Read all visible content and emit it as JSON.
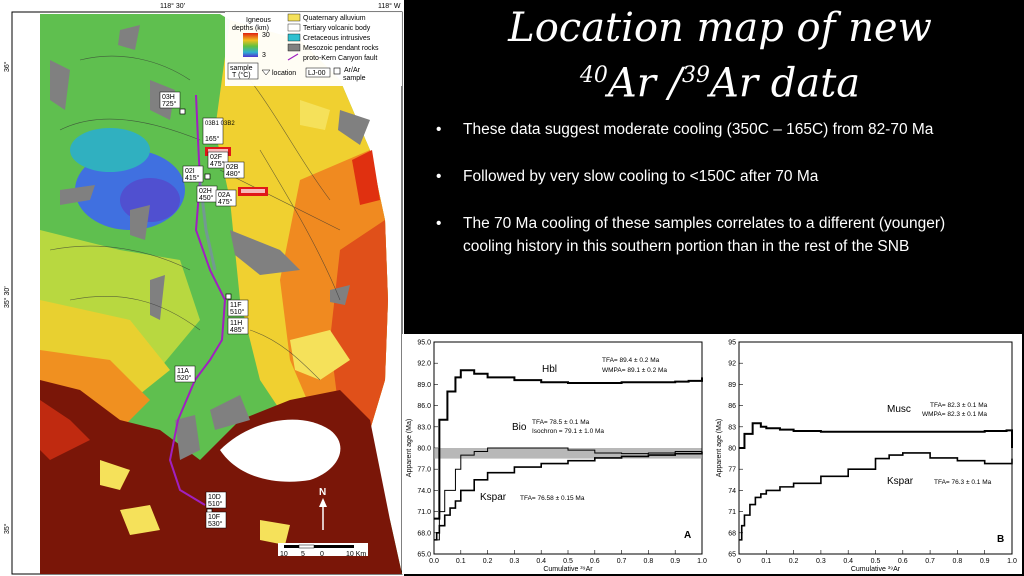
{
  "slide": {
    "title_line1": "Location map of new",
    "title_sup1": "40",
    "title_ar1": "Ar /",
    "title_sup2": "39",
    "title_ar2": "Ar data",
    "bullets": [
      "These data suggest moderate cooling (350C – 165C) from 82-70 Ma",
      "Followed by very slow cooling  to <150C after 70 Ma",
      "The 70 Ma cooling of these samples correlates to a different (younger) cooling history in this southern portion than in the rest of the SNB"
    ]
  },
  "map": {
    "lon_labels": [
      "118° 30'",
      "118° W"
    ],
    "lat_labels": [
      "36°",
      "35° 30'",
      "35°"
    ],
    "legend": {
      "depth_title_1": "Igneous",
      "depth_title_2": "depths (km)",
      "depth_max": "30",
      "depth_min": "3",
      "items": [
        "Quaternary alluvium",
        "Tertiary volcanic body",
        "Cretaceous intrusives",
        "Mesozoic pendant rocks",
        "proto-Kern Canyon fault"
      ],
      "sample_label_1": "sample",
      "sample_label_2": "T (°C)",
      "location_label": "location",
      "sample_id_example": "LJ-00",
      "arar_label_1": "Ar/Ar",
      "arar_label_2": "sample"
    },
    "samples": [
      {
        "id": "03H",
        "temp": "725°"
      },
      {
        "id": "03B1 03B2",
        "temp": "165°"
      },
      {
        "id": "02F",
        "temp": "475°"
      },
      {
        "id": "02B",
        "temp": "480°"
      },
      {
        "id": "02I",
        "temp": "415°"
      },
      {
        "id": "02H",
        "temp": "450°"
      },
      {
        "id": "02A",
        "temp": "475°"
      },
      {
        "id": "11F",
        "temp": "510°"
      },
      {
        "id": "11H",
        "temp": "485°"
      },
      {
        "id": "11A",
        "temp": "520°"
      },
      {
        "id": "10D",
        "temp": "510°"
      },
      {
        "id": "10F",
        "temp": "530°"
      }
    ],
    "north": "N",
    "scale_labels": [
      "10",
      "5",
      "0",
      "10 Km"
    ]
  },
  "colors": {
    "alluvium": "#f5e15a",
    "maroon": "#7a1608",
    "pendant": "#808080",
    "fault": "#a020c0",
    "highlight": "#e01818"
  },
  "chart_data": [
    {
      "type": "line",
      "panel": "A",
      "ylabel": "Apparent age (Ma)",
      "xlabel": "Cumulative ³⁹Ar",
      "ylim": [
        65,
        95
      ],
      "xlim": [
        0,
        1
      ],
      "yticks": [
        "65.0",
        "68.0",
        "71.0",
        "74.0",
        "77.0",
        "80.0",
        "83.0",
        "86.0",
        "89.0",
        "92.0",
        "95.0"
      ],
      "xticks": [
        "0.0",
        "0.1",
        "0.2",
        "0.3",
        "0.4",
        "0.5",
        "0.6",
        "0.7",
        "0.8",
        "0.9",
        "1.0"
      ],
      "annotations": [
        "Hbl",
        "TFA= 89.4 ± 0.2 Ma",
        "WMPA= 89.1 ± 0.2 Ma",
        "Bio",
        "TFA= 78.5 ± 0.1 Ma",
        "Isochron = 79.1 ± 1.0 Ma",
        "Kspar",
        "TFA= 76.58 ± 0.15 Ma",
        "A"
      ],
      "series": [
        {
          "x": [
            0,
            0.02,
            0.05,
            0.08,
            0.1,
            0.15,
            0.2,
            0.3,
            0.4,
            0.5,
            0.6,
            0.7,
            0.8,
            0.9,
            0.95,
            1.0
          ],
          "values": [
            70,
            84,
            88,
            90,
            91,
            90.5,
            90,
            89.6,
            89.3,
            89.2,
            89.2,
            89.3,
            89.3,
            89.4,
            89.5,
            90
          ]
        },
        {
          "x": [
            0,
            0.02,
            0.04,
            0.08,
            0.1,
            0.15,
            0.2,
            0.3,
            0.4,
            0.5,
            0.6,
            0.7,
            0.8,
            0.9,
            1.0
          ],
          "values": [
            67,
            71,
            74,
            77,
            79,
            79.5,
            80,
            80,
            80,
            79.7,
            79.3,
            79.2,
            79.3,
            79.5,
            80
          ]
        },
        {
          "x": [
            0,
            0.01,
            0.02,
            0.04,
            0.06,
            0.08,
            0.1,
            0.15,
            0.2,
            0.3,
            0.4,
            0.5,
            0.6,
            0.7,
            0.8,
            0.9,
            1.0
          ],
          "values": [
            67,
            68,
            69,
            70.5,
            71.5,
            72.5,
            74,
            75.5,
            76.5,
            77.3,
            77.8,
            78.2,
            78.6,
            78.8,
            79,
            79.2,
            79.5
          ]
        }
      ]
    },
    {
      "type": "line",
      "panel": "B",
      "ylabel": "Apparent age (Ma)",
      "xlabel": "Cumulative ³⁹Ar",
      "ylim": [
        65,
        95
      ],
      "xlim": [
        0,
        1
      ],
      "yticks": [
        "65",
        "68",
        "71",
        "74",
        "77",
        "80",
        "83",
        "86",
        "89",
        "92",
        "95"
      ],
      "xticks": [
        "0",
        "0.1",
        "0.2",
        "0.3",
        "0.4",
        "0.5",
        "0.6",
        "0.7",
        "0.8",
        "0.9",
        "1.0"
      ],
      "annotations": [
        "Musc",
        "TFA= 82.3 ± 0.1 Ma",
        "WMPA= 82.3 ± 0.1 Ma",
        "Kspar",
        "TFA= 76.3 ± 0.1 Ma",
        "B"
      ],
      "series": [
        {
          "x": [
            0,
            0.02,
            0.05,
            0.08,
            0.1,
            0.15,
            0.2,
            0.3,
            0.4,
            0.5,
            0.6,
            0.7,
            0.8,
            0.9,
            0.98,
            1.0
          ],
          "values": [
            80,
            82,
            83.5,
            83,
            82.8,
            82.6,
            82.4,
            82.3,
            82.3,
            82.3,
            82.3,
            82.3,
            82.3,
            82.4,
            82.5,
            80
          ]
        },
        {
          "x": [
            0,
            0.01,
            0.02,
            0.04,
            0.06,
            0.08,
            0.1,
            0.15,
            0.2,
            0.3,
            0.4,
            0.5,
            0.55,
            0.6,
            0.7,
            0.8,
            0.9,
            1.0
          ],
          "values": [
            67,
            69,
            70.5,
            72,
            73,
            73.5,
            74,
            74.5,
            75,
            76,
            77,
            78.5,
            79,
            79.3,
            78.6,
            78.2,
            77.8,
            78.5
          ]
        }
      ]
    }
  ]
}
